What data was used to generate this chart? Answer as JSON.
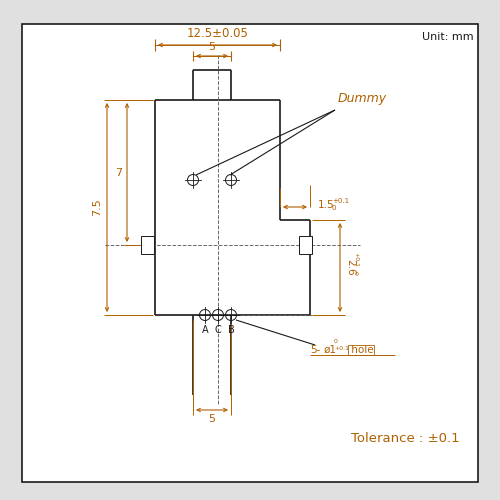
{
  "bg_color": "#e0e0e0",
  "box_color": "#ffffff",
  "line_color": "#1a1a1a",
  "dim_color": "#b06000",
  "unit_text": "Unit: mm",
  "tolerance_text": "Tolerance : ±0.1",
  "dummy_text": "Dummy",
  "dim_125": "12.5±0.05",
  "dim_5": "5",
  "dim_7": "7",
  "dim_75": "7.5",
  "dim_5b": "5",
  "labels": [
    "A",
    "C",
    "B"
  ]
}
